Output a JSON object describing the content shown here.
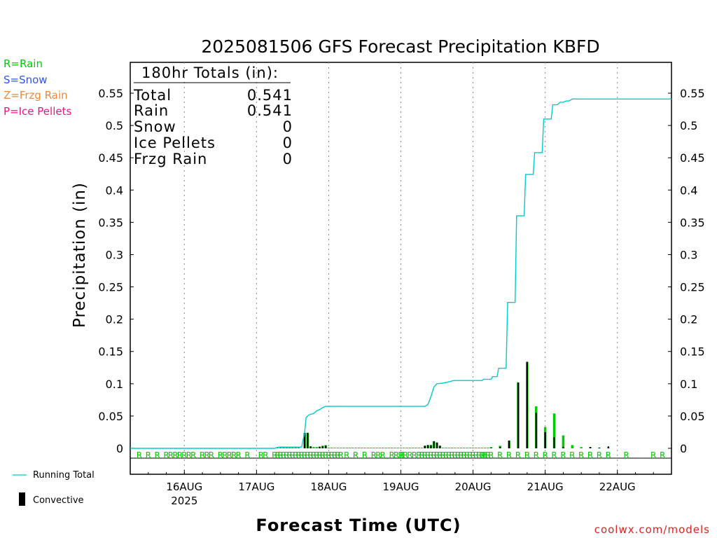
{
  "colors": {
    "rain": "#00cc00",
    "snow": "#3355ee",
    "frzg": "#ee8833",
    "ice": "#ee1188",
    "running_total": "#00cccc",
    "convective": "#000000",
    "credit": "#dd2222"
  },
  "precip_type_legend": [
    {
      "text": "R=Rain",
      "color_key": "rain"
    },
    {
      "text": "S=Snow",
      "color_key": "snow"
    },
    {
      "text": "Z=Frzg Rain",
      "color_key": "frzg"
    },
    {
      "text": "P=Ice Pellets",
      "color_key": "ice"
    }
  ],
  "totals_box": {
    "header": "180hr Totals (in):",
    "rows": [
      {
        "label": "Total",
        "value": "0.541"
      },
      {
        "label": "Rain",
        "value": "0.541"
      },
      {
        "label": "Snow",
        "value": "0"
      },
      {
        "label": "Ice Pellets",
        "value": "0"
      },
      {
        "label": "Frzg Rain",
        "value": "0"
      }
    ]
  },
  "bottom_legend": {
    "running_total_label": "Running Total",
    "convective_label": "Convective"
  },
  "credit": "coolwx.com/models",
  "chart_data": {
    "type": "bar",
    "title": "2025081506 GFS Forecast Precipitation KBFD",
    "xlabel": "Forecast Time (UTC)",
    "ylabel": "Precipitation (in)",
    "ylim": [
      0,
      0.6
    ],
    "y_ticks": [
      0,
      0.05,
      0.1,
      0.15,
      0.2,
      0.25,
      0.3,
      0.35,
      0.4,
      0.45,
      0.5,
      0.55
    ],
    "y_tick_labels": [
      "0",
      "0.05",
      "0.1",
      "0.15",
      "0.2",
      "0.25",
      "0.3",
      "0.35",
      "0.4",
      "0.45",
      "0.5",
      "0.55"
    ],
    "x_range_hours_from_init": [
      0,
      180
    ],
    "x_ticks": [
      {
        "hour": 18,
        "label": "16AUG",
        "sublabel": "2025"
      },
      {
        "hour": 42,
        "label": "17AUG",
        "sublabel": ""
      },
      {
        "hour": 66,
        "label": "18AUG",
        "sublabel": ""
      },
      {
        "hour": 90,
        "label": "19AUG",
        "sublabel": ""
      },
      {
        "hour": 114,
        "label": "20AUG",
        "sublabel": ""
      },
      {
        "hour": 138,
        "label": "21AUG",
        "sublabel": ""
      },
      {
        "hour": 162,
        "label": "22AUG",
        "sublabel": ""
      }
    ],
    "grid": "vertical dotted at day boundaries",
    "series": [
      {
        "name": "Running Total",
        "kind": "line",
        "points": [
          [
            0,
            0
          ],
          [
            48,
            0
          ],
          [
            49.5,
            0.002
          ],
          [
            57,
            0.002
          ],
          [
            58,
            0.025
          ],
          [
            58.5,
            0.048
          ],
          [
            59.5,
            0.052
          ],
          [
            61,
            0.054
          ],
          [
            62,
            0.058
          ],
          [
            63,
            0.06
          ],
          [
            64,
            0.063
          ],
          [
            65,
            0.065
          ],
          [
            78,
            0.065
          ],
          [
            98,
            0.065
          ],
          [
            99,
            0.068
          ],
          [
            100,
            0.08
          ],
          [
            101,
            0.095
          ],
          [
            102,
            0.1
          ],
          [
            104,
            0.101
          ],
          [
            106,
            0.103
          ],
          [
            107.5,
            0.105
          ],
          [
            117,
            0.105
          ],
          [
            117.5,
            0.107
          ],
          [
            120,
            0.107
          ],
          [
            120.5,
            0.111
          ],
          [
            122,
            0.111
          ],
          [
            122.5,
            0.124
          ],
          [
            125,
            0.124
          ],
          [
            125.5,
            0.226
          ],
          [
            128,
            0.226
          ],
          [
            128.5,
            0.36
          ],
          [
            131,
            0.36
          ],
          [
            131.5,
            0.424
          ],
          [
            134,
            0.424
          ],
          [
            134.5,
            0.458
          ],
          [
            137,
            0.458
          ],
          [
            137.5,
            0.51
          ],
          [
            140,
            0.51
          ],
          [
            140.5,
            0.532
          ],
          [
            142,
            0.532
          ],
          [
            143,
            0.536
          ],
          [
            144,
            0.536
          ],
          [
            145,
            0.538
          ],
          [
            146,
            0.538
          ],
          [
            147,
            0.541
          ],
          [
            180,
            0.541
          ]
        ]
      },
      {
        "name": "Total",
        "kind": "bars",
        "bars": [
          [
            49,
            0.002
          ],
          [
            50,
            0.002
          ],
          [
            51,
            0.002
          ],
          [
            52,
            0.002
          ],
          [
            53,
            0.002
          ],
          [
            54,
            0.002
          ],
          [
            55,
            0.002
          ],
          [
            56,
            0.002
          ],
          [
            58,
            0.024
          ],
          [
            59,
            0.024
          ],
          [
            60,
            0.003
          ],
          [
            61,
            0.002
          ],
          [
            62,
            0.002
          ],
          [
            63,
            0.003
          ],
          [
            64,
            0.004
          ],
          [
            65,
            0.005
          ],
          [
            66,
            0.001
          ],
          [
            67,
            0.001
          ],
          [
            68,
            0.001
          ],
          [
            69,
            0.001
          ],
          [
            70,
            0.001
          ],
          [
            71,
            0.001
          ],
          [
            72,
            0.001
          ],
          [
            73,
            0.001
          ],
          [
            74,
            0.001
          ],
          [
            75,
            0.001
          ],
          [
            76,
            0.001
          ],
          [
            77,
            0.001
          ],
          [
            78,
            0.001
          ],
          [
            79,
            0.001
          ],
          [
            80,
            0.001
          ],
          [
            81,
            0.001
          ],
          [
            82,
            0.001
          ],
          [
            83,
            0.001
          ],
          [
            84,
            0.001
          ],
          [
            85,
            0.001
          ],
          [
            86,
            0.001
          ],
          [
            87,
            0.001
          ],
          [
            88,
            0.001
          ],
          [
            89,
            0.001
          ],
          [
            90,
            0.001
          ],
          [
            91,
            0.001
          ],
          [
            92,
            0.001
          ],
          [
            93,
            0.001
          ],
          [
            94,
            0.001
          ],
          [
            95,
            0.001
          ],
          [
            96,
            0.001
          ],
          [
            97,
            0.001
          ],
          [
            98,
            0.004
          ],
          [
            99,
            0.005
          ],
          [
            100,
            0.005
          ],
          [
            101,
            0.011
          ],
          [
            102,
            0.009
          ],
          [
            103,
            0.004
          ],
          [
            104,
            0.001
          ],
          [
            105,
            0.001
          ],
          [
            106,
            0.001
          ],
          [
            107,
            0.001
          ],
          [
            108,
            0.001
          ],
          [
            109,
            0.001
          ],
          [
            110,
            0.001
          ],
          [
            111,
            0.001
          ],
          [
            112,
            0.001
          ],
          [
            113,
            0.001
          ],
          [
            114,
            0.001
          ],
          [
            115,
            0.001
          ],
          [
            116,
            0.001
          ],
          [
            117,
            0.001
          ],
          [
            118,
            0.001
          ],
          [
            119,
            0.001
          ],
          [
            120,
            0.002
          ],
          [
            123,
            0.004
          ],
          [
            126,
            0.012
          ],
          [
            129,
            0.102
          ],
          [
            132,
            0.134
          ],
          [
            135,
            0.065
          ],
          [
            138,
            0.033
          ],
          [
            141,
            0.054
          ],
          [
            144,
            0.02
          ],
          [
            147,
            0.005
          ],
          [
            150,
            0.002
          ],
          [
            153,
            0.002
          ],
          [
            156,
            0.001
          ],
          [
            159,
            0.001
          ]
        ]
      },
      {
        "name": "Convective",
        "kind": "bars",
        "bars": [
          [
            58,
            0.024
          ],
          [
            59,
            0.024
          ],
          [
            60,
            0.003
          ],
          [
            63,
            0.002
          ],
          [
            64,
            0.003
          ],
          [
            65,
            0.004
          ],
          [
            98,
            0.004
          ],
          [
            99,
            0.005
          ],
          [
            100,
            0.005
          ],
          [
            101,
            0.011
          ],
          [
            102,
            0.009
          ],
          [
            103,
            0.004
          ],
          [
            120,
            0.001
          ],
          [
            123,
            0.002
          ],
          [
            126,
            0.012
          ],
          [
            129,
            0.102
          ],
          [
            132,
            0.134
          ],
          [
            135,
            0.055
          ],
          [
            138,
            0.025
          ],
          [
            141,
            0.017
          ],
          [
            144,
            0.002
          ],
          [
            153,
            0.002
          ],
          [
            156,
            0.001
          ],
          [
            159,
            0.003
          ]
        ]
      }
    ],
    "precip_type_marks": {
      "symbol": "R",
      "hours": [
        3,
        6,
        9,
        12,
        13.5,
        15,
        16.5,
        18,
        19.5,
        21,
        24,
        25.5,
        27,
        30,
        31.5,
        33,
        34.5,
        36,
        39,
        43.5,
        45,
        48,
        49,
        50,
        51,
        52,
        53,
        54,
        55,
        56,
        57,
        58,
        59,
        60,
        61,
        62,
        63,
        64,
        65,
        66,
        67,
        68,
        69,
        70,
        72,
        75,
        78,
        81,
        82.5,
        84,
        87,
        88.5,
        90,
        90.5,
        91.5,
        93,
        94.5,
        96,
        97,
        98,
        99,
        100,
        101,
        102,
        103,
        104,
        105,
        106,
        107,
        108,
        109,
        110,
        111,
        112,
        113,
        114,
        115,
        116,
        117,
        117.5,
        118,
        119,
        120,
        123,
        126,
        129,
        132,
        135,
        138,
        141,
        144,
        147,
        150,
        153,
        156,
        159,
        165,
        174,
        177
      ]
    }
  }
}
